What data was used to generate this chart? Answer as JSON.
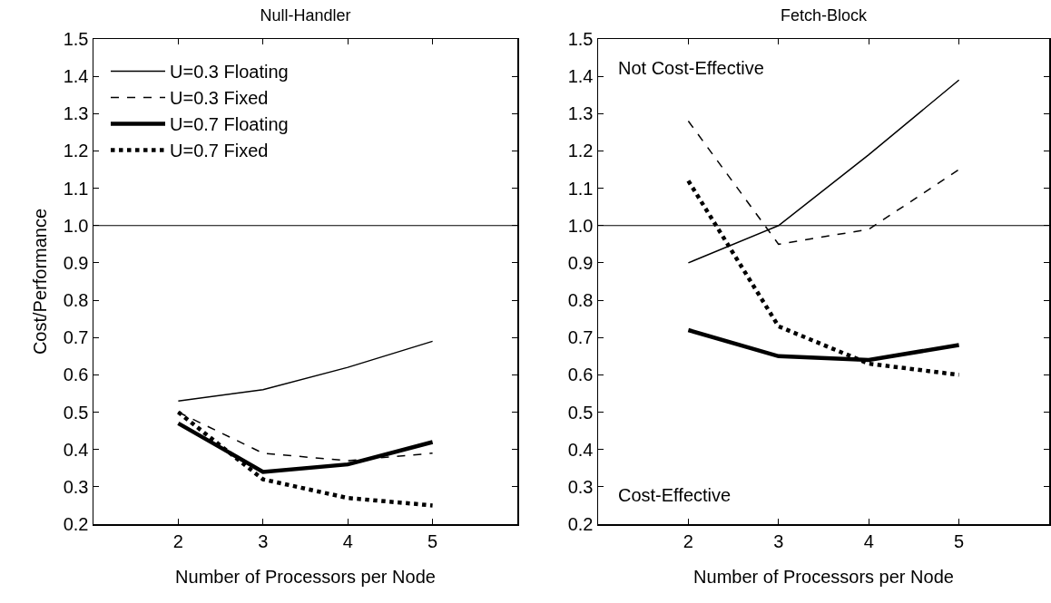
{
  "chart_data": [
    {
      "type": "line",
      "title": "Null-Handler",
      "xlabel": "Number of Processors per Node",
      "ylabel": "Cost/Performance",
      "x": [
        2,
        3,
        4,
        5
      ],
      "xlim": [
        1,
        6
      ],
      "xticks": [
        2,
        3,
        4,
        5
      ],
      "ylim": [
        0.2,
        1.5
      ],
      "yticks": [
        {
          "value": 0.2,
          "label": "0.2"
        },
        {
          "value": 0.3,
          "label": "0.3"
        },
        {
          "value": 0.4,
          "label": "0.4"
        },
        {
          "value": 0.5,
          "label": "0.5"
        },
        {
          "value": 0.6,
          "label": "0.6"
        },
        {
          "value": 0.7,
          "label": "0.7"
        },
        {
          "value": 0.8,
          "label": "0.8"
        },
        {
          "value": 0.9,
          "label": "0.9"
        },
        {
          "value": 1.0,
          "label": "1.0"
        },
        {
          "value": 1.1,
          "label": "1.1"
        },
        {
          "value": 1.2,
          "label": "1.2"
        },
        {
          "value": 1.3,
          "label": "1.3"
        },
        {
          "value": 1.4,
          "label": "1.4"
        },
        {
          "value": 1.5,
          "label": "1.5"
        }
      ],
      "grid": false,
      "legend": "top left",
      "marker": "none",
      "ref_lines": [
        {
          "axis": "y",
          "value": 1.0,
          "color": "#000000"
        }
      ],
      "series": [
        {
          "name": "U=0.3 Floating",
          "color": "#000000",
          "line_style": "solid",
          "values": [
            0.53,
            0.56,
            0.62,
            0.69
          ]
        },
        {
          "name": "U=0.3 Fixed",
          "color": "#000000",
          "line_style": "dashed",
          "values": [
            0.5,
            0.39,
            0.37,
            0.39
          ]
        },
        {
          "name": "U=0.7 Floating",
          "color": "#000000",
          "line_style": "solid",
          "values": [
            0.47,
            0.34,
            0.36,
            0.42
          ]
        },
        {
          "name": "U=0.7 Fixed",
          "color": "#000000",
          "line_style": "dotted",
          "values": [
            0.5,
            0.32,
            0.27,
            0.25
          ]
        }
      ]
    },
    {
      "type": "line",
      "title": "Fetch-Block",
      "xlabel": "Number of Processors per Node",
      "x": [
        2,
        3,
        4,
        5
      ],
      "xlim": [
        1,
        6
      ],
      "xticks": [
        2,
        3,
        4,
        5
      ],
      "ylim": [
        0.2,
        1.5
      ],
      "yticks": [
        {
          "value": 0.2,
          "label": "0.2"
        },
        {
          "value": 0.3,
          "label": "0.3"
        },
        {
          "value": 0.4,
          "label": "0.4"
        },
        {
          "value": 0.5,
          "label": "0.5"
        },
        {
          "value": 0.6,
          "label": "0.6"
        },
        {
          "value": 0.7,
          "label": "0.7"
        },
        {
          "value": 0.8,
          "label": "0.8"
        },
        {
          "value": 0.9,
          "label": "0.9"
        },
        {
          "value": 1.0,
          "label": "1.0"
        },
        {
          "value": 1.1,
          "label": "1.1"
        },
        {
          "value": 1.2,
          "label": "1.2"
        },
        {
          "value": 1.3,
          "label": "1.3"
        },
        {
          "value": 1.4,
          "label": "1.4"
        },
        {
          "value": 1.5,
          "label": "1.5"
        }
      ],
      "grid": false,
      "legend": false,
      "marker": "none",
      "annotations": [
        "Not Cost-Effective",
        "Cost-Effective"
      ],
      "ref_lines": [
        {
          "axis": "y",
          "value": 1.0,
          "color": "#000000"
        }
      ],
      "series": [
        {
          "color": "#000000",
          "line_style": "solid",
          "values": [
            0.9,
            1.0,
            1.19,
            1.39
          ]
        },
        {
          "color": "#000000",
          "line_style": "dashed",
          "values": [
            1.28,
            0.95,
            0.99,
            1.15
          ]
        },
        {
          "color": "#000000",
          "line_style": "solid",
          "values": [
            0.72,
            0.65,
            0.64,
            0.68
          ]
        },
        {
          "color": "#000000",
          "line_style": "dotted",
          "values": [
            1.12,
            0.73,
            0.63,
            0.6
          ]
        }
      ]
    }
  ]
}
